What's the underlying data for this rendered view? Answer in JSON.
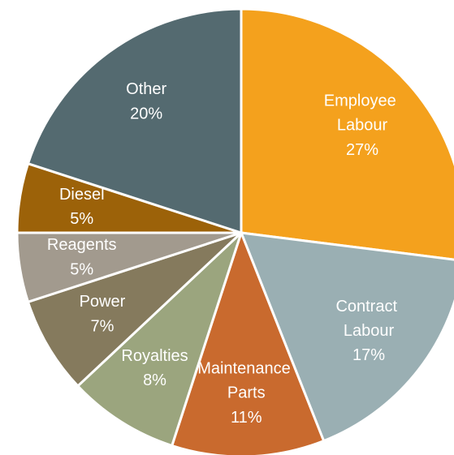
{
  "chart_data": {
    "type": "pie",
    "categories": [
      "Employee Labour",
      "Contract Labour",
      "Maintenance Parts",
      "Royalties",
      "Power",
      "Reagents",
      "Diesel",
      "Other"
    ],
    "values": [
      27,
      17,
      11,
      8,
      7,
      5,
      5,
      20
    ],
    "value_labels": [
      "27%",
      "17%",
      "11%",
      "8%",
      "7%",
      "5%",
      "5%",
      "20%"
    ],
    "colors": [
      "#f4a11d",
      "#9aafb3",
      "#c96a2e",
      "#9ba57e",
      "#857a5d",
      "#a29a8e",
      "#9c6209",
      "#546a70"
    ]
  }
}
